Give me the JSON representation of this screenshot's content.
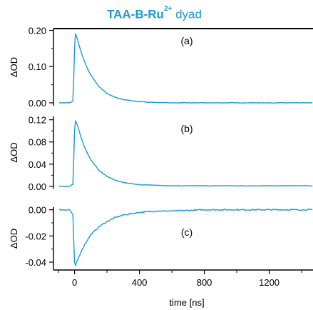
{
  "title": {
    "prefix": "TAA-B-Ru",
    "superscript": "2+",
    "suffix": " dyad",
    "color": "#1a9ad6"
  },
  "x_axis": {
    "label": "time [ns]",
    "range": [
      -130,
      1470
    ],
    "ticks": [
      0,
      400,
      800,
      1200
    ],
    "tick_labels": [
      "0",
      "400",
      "800",
      "1200"
    ]
  },
  "chart_data": [
    {
      "type": "line",
      "panel_label": "(a)",
      "ylabel": "ΔOD",
      "ylim": [
        -0.008,
        0.205
      ],
      "yticks": [
        0.0,
        0.1,
        0.2
      ],
      "ytick_labels": [
        "0.00",
        "0.10",
        "0.20"
      ],
      "series": [
        {
          "color": "#1a9ad6",
          "x": [
            -100,
            -30,
            -10,
            -5,
            0,
            5,
            10,
            20,
            40,
            60,
            80,
            100,
            150,
            200,
            250,
            300,
            400,
            500,
            600,
            800,
            1000,
            1200,
            1470
          ],
          "values": [
            0.0,
            0.0,
            0.005,
            0.07,
            0.15,
            0.19,
            0.186,
            0.172,
            0.14,
            0.115,
            0.094,
            0.077,
            0.045,
            0.026,
            0.015,
            0.009,
            0.003,
            0.001,
            0.0,
            0.0,
            0.0,
            0.0,
            0.0
          ]
        }
      ]
    },
    {
      "type": "line",
      "panel_label": "(b)",
      "ylabel": "ΔOD",
      "ylim": [
        -0.004,
        0.126
      ],
      "yticks": [
        0.0,
        0.04,
        0.08,
        0.12
      ],
      "ytick_labels": [
        "0.00",
        "0.04",
        "0.08",
        "0.12"
      ],
      "series": [
        {
          "color": "#1a9ad6",
          "x": [
            -100,
            -30,
            -10,
            -5,
            0,
            5,
            10,
            20,
            40,
            60,
            80,
            100,
            150,
            200,
            250,
            300,
            400,
            500,
            600,
            800,
            1000,
            1200,
            1470
          ],
          "values": [
            0.0,
            0.0,
            0.004,
            0.05,
            0.1,
            0.118,
            0.116,
            0.108,
            0.088,
            0.072,
            0.059,
            0.048,
            0.029,
            0.018,
            0.011,
            0.007,
            0.003,
            0.002,
            0.001,
            0.001,
            0.001,
            0.001,
            0.001
          ]
        }
      ]
    },
    {
      "type": "line",
      "panel_label": "(c)",
      "ylabel": "ΔOD",
      "ylim": [
        -0.046,
        0.002
      ],
      "yticks": [
        0.0,
        -0.02,
        -0.04
      ],
      "ytick_labels": [
        "0.00",
        "-0.02",
        "-0.04"
      ],
      "series": [
        {
          "color": "#1a9ad6",
          "x": [
            -100,
            -30,
            -10,
            -5,
            0,
            5,
            10,
            20,
            40,
            60,
            80,
            100,
            150,
            200,
            250,
            300,
            400,
            500,
            600,
            800,
            1000,
            1200,
            1470
          ],
          "values": [
            0.0,
            0.0,
            -0.004,
            -0.025,
            -0.04,
            -0.043,
            -0.041,
            -0.038,
            -0.032,
            -0.027,
            -0.023,
            -0.019,
            -0.013,
            -0.009,
            -0.006,
            -0.004,
            -0.002,
            -0.001,
            -0.001,
            0.0,
            0.0,
            0.0,
            0.0
          ]
        }
      ]
    }
  ]
}
